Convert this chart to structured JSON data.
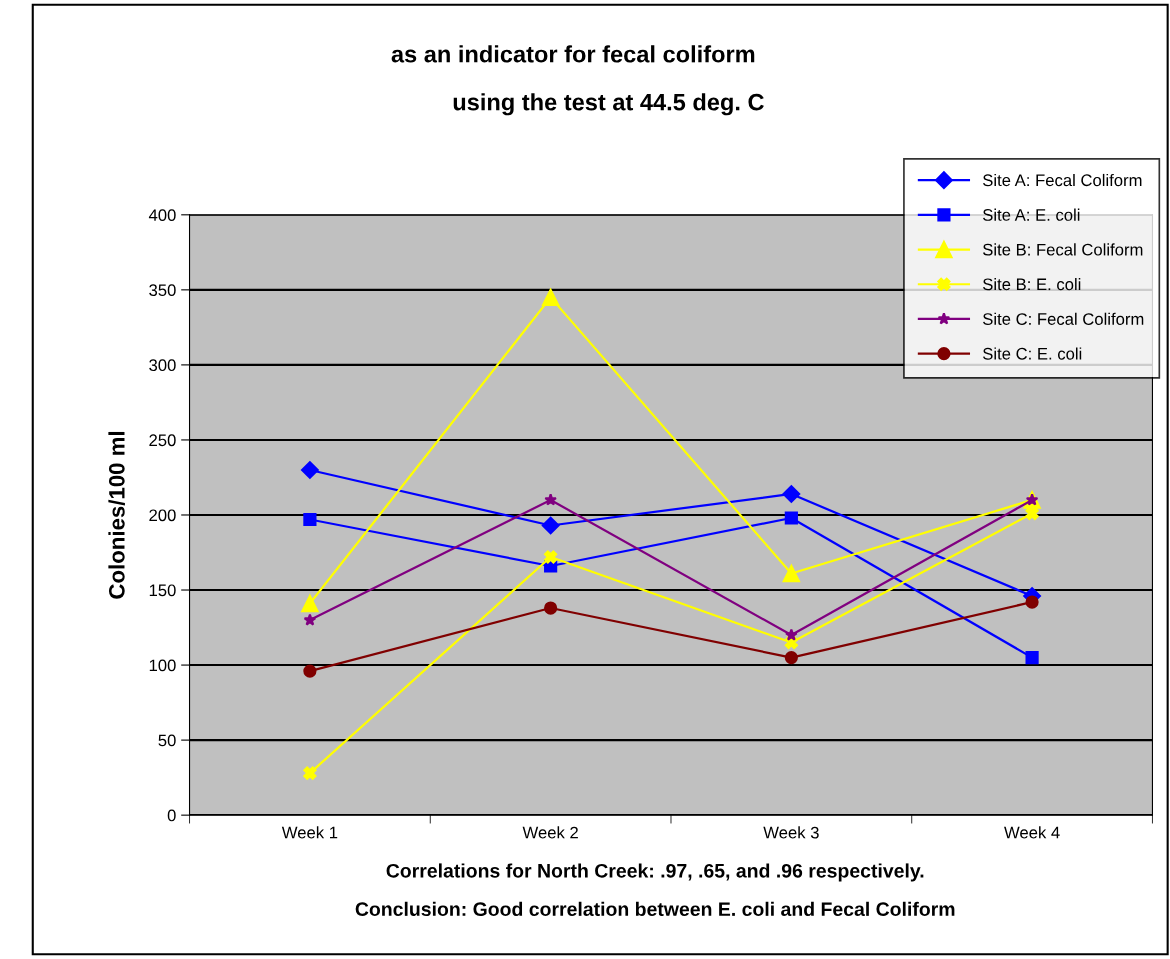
{
  "chart_data": {
    "type": "line",
    "title": "as an indicator for fecal coliform",
    "subtitle": "using the test at 44.5 deg. C",
    "ylabel": "Colonies/100 ml",
    "categories": [
      "Week 1",
      "Week 2",
      "Week 3",
      "Week 4"
    ],
    "ylim": [
      0,
      400
    ],
    "yticks": [
      0,
      50,
      100,
      150,
      200,
      250,
      300,
      350,
      400
    ],
    "grid": "y",
    "legend": "top right",
    "series": [
      {
        "name": "Site A: Fecal Coliform",
        "color": "#0000ff",
        "marker": "diamond",
        "values": [
          230,
          193,
          214,
          146
        ]
      },
      {
        "name": "Site A: E. coli",
        "color": "#0000ff",
        "marker": "square",
        "values": [
          197,
          166,
          198,
          105
        ]
      },
      {
        "name": "Site B: Fecal Coliform",
        "color": "#ffff00",
        "marker": "triangle",
        "values": [
          141,
          345,
          161,
          210
        ]
      },
      {
        "name": "Site B: E. coli",
        "color": "#fffe00",
        "marker": "cross",
        "values": [
          28,
          172,
          115,
          201
        ]
      },
      {
        "name": "Site C: Fecal Coliform",
        "color": "#800080",
        "marker": "star",
        "values": [
          130,
          210,
          120,
          210
        ]
      },
      {
        "name": "Site C: E. coli",
        "color": "#800000",
        "marker": "circle",
        "values": [
          96,
          138,
          105,
          142
        ]
      }
    ],
    "annotations": [
      "Correlations for North Creek: .97, .65, and .96 respectively.",
      "Conclusion: Good correlation between E. coli and Fecal Coliform"
    ]
  }
}
